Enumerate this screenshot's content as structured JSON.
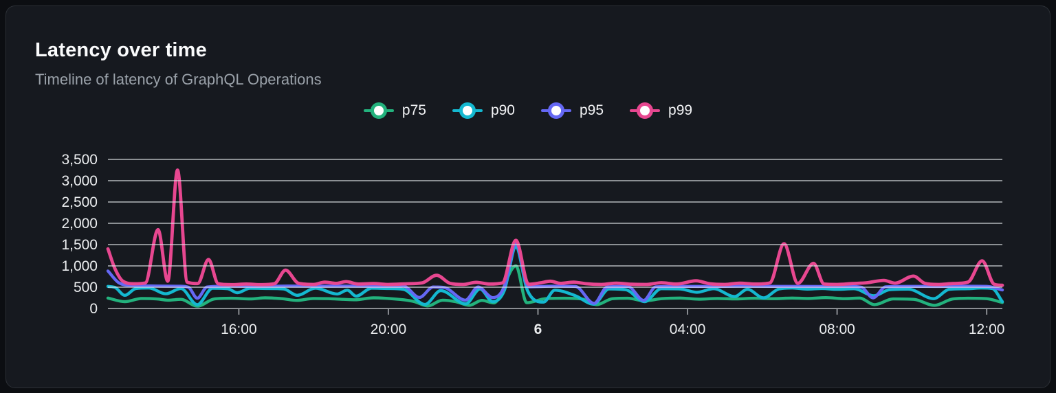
{
  "chart_data": {
    "type": "line",
    "title": "Latency over time",
    "subtitle": "Timeline of latency of GraphQL Operations",
    "legend_position": "top",
    "grid": "horizontal-gridlines-over-series",
    "x_unit": "hours from chart start (~12:30)",
    "xlim": [
      0,
      23.92
    ],
    "ylim": [
      0,
      3500
    ],
    "x_ticks": [
      {
        "t": 3.5,
        "label": "16:00",
        "bold": false
      },
      {
        "t": 7.5,
        "label": "20:00",
        "bold": false
      },
      {
        "t": 11.5,
        "label": "6",
        "bold": true
      },
      {
        "t": 15.5,
        "label": "04:00",
        "bold": false
      },
      {
        "t": 19.5,
        "label": "08:00",
        "bold": false
      },
      {
        "t": 23.5,
        "label": "12:00",
        "bold": false
      }
    ],
    "y_ticks": [
      {
        "value": 0,
        "label": "0"
      },
      {
        "value": 500,
        "label": "500"
      },
      {
        "value": 1000,
        "label": "1,000"
      },
      {
        "value": 1500,
        "label": "1,500"
      },
      {
        "value": 2000,
        "label": "2,000"
      },
      {
        "value": 2500,
        "label": "2,500"
      },
      {
        "value": 3000,
        "label": "3,000"
      },
      {
        "value": 3500,
        "label": "3,500"
      }
    ],
    "series": [
      {
        "name": "p75",
        "color": "#23b27d",
        "width": 4.4,
        "points": [
          [
            0,
            245
          ],
          [
            0.45,
            160
          ],
          [
            0.9,
            235
          ],
          [
            1.3,
            225
          ],
          [
            1.6,
            195
          ],
          [
            1.95,
            215
          ],
          [
            2.39,
            55
          ],
          [
            2.85,
            225
          ],
          [
            3.3,
            240
          ],
          [
            3.8,
            225
          ],
          [
            4.2,
            250
          ],
          [
            4.65,
            230
          ],
          [
            5.05,
            190
          ],
          [
            5.5,
            235
          ],
          [
            5.9,
            230
          ],
          [
            6.3,
            215
          ],
          [
            6.6,
            205
          ],
          [
            7.1,
            250
          ],
          [
            7.5,
            235
          ],
          [
            7.9,
            205
          ],
          [
            8.2,
            160
          ],
          [
            8.55,
            60
          ],
          [
            8.95,
            195
          ],
          [
            9.3,
            160
          ],
          [
            9.66,
            75
          ],
          [
            10.0,
            190
          ],
          [
            10.32,
            130
          ],
          [
            10.91,
            1000
          ],
          [
            11.2,
            135
          ],
          [
            11.7,
            230
          ],
          [
            12.2,
            240
          ],
          [
            12.7,
            220
          ],
          [
            13.06,
            90
          ],
          [
            13.5,
            230
          ],
          [
            13.9,
            240
          ],
          [
            14.35,
            180
          ],
          [
            14.8,
            230
          ],
          [
            15.3,
            245
          ],
          [
            15.8,
            220
          ],
          [
            16.3,
            235
          ],
          [
            16.8,
            225
          ],
          [
            17.3,
            240
          ],
          [
            17.8,
            230
          ],
          [
            18.3,
            245
          ],
          [
            18.7,
            235
          ],
          [
            19.2,
            255
          ],
          [
            19.7,
            230
          ],
          [
            20.1,
            245
          ],
          [
            20.5,
            90
          ],
          [
            21.0,
            225
          ],
          [
            21.55,
            215
          ],
          [
            22.1,
            75
          ],
          [
            22.6,
            225
          ],
          [
            23.0,
            240
          ],
          [
            23.5,
            230
          ],
          [
            23.92,
            140
          ]
        ]
      },
      {
        "name": "p90",
        "color": "#14b8d0",
        "width": 4.4,
        "points": [
          [
            0,
            520
          ],
          [
            0.2,
            490
          ],
          [
            0.45,
            310
          ],
          [
            0.75,
            470
          ],
          [
            1.1,
            480
          ],
          [
            1.55,
            345
          ],
          [
            1.95,
            470
          ],
          [
            2.39,
            90
          ],
          [
            2.8,
            475
          ],
          [
            3.2,
            465
          ],
          [
            3.46,
            370
          ],
          [
            3.8,
            475
          ],
          [
            4.3,
            470
          ],
          [
            4.7,
            460
          ],
          [
            5.06,
            310
          ],
          [
            5.55,
            478
          ],
          [
            6.13,
            340
          ],
          [
            6.4,
            430
          ],
          [
            6.64,
            290
          ],
          [
            7.05,
            478
          ],
          [
            7.5,
            470
          ],
          [
            7.9,
            450
          ],
          [
            8.48,
            95
          ],
          [
            8.9,
            420
          ],
          [
            9.57,
            110
          ],
          [
            9.95,
            460
          ],
          [
            10.29,
            160
          ],
          [
            10.6,
            420
          ],
          [
            10.91,
            1445
          ],
          [
            11.22,
            420
          ],
          [
            11.65,
            150
          ],
          [
            11.95,
            430
          ],
          [
            12.5,
            300
          ],
          [
            12.99,
            100
          ],
          [
            13.4,
            460
          ],
          [
            13.85,
            440
          ],
          [
            14.35,
            160
          ],
          [
            14.8,
            465
          ],
          [
            15.3,
            460
          ],
          [
            15.75,
            380
          ],
          [
            16.2,
            465
          ],
          [
            16.76,
            280
          ],
          [
            17.1,
            450
          ],
          [
            17.53,
            250
          ],
          [
            17.95,
            460
          ],
          [
            18.3,
            480
          ],
          [
            18.7,
            455
          ],
          [
            19.1,
            470
          ],
          [
            19.5,
            450
          ],
          [
            19.95,
            465
          ],
          [
            20.48,
            300
          ],
          [
            20.9,
            440
          ],
          [
            21.4,
            455
          ],
          [
            22.08,
            230
          ],
          [
            22.5,
            450
          ],
          [
            23.0,
            465
          ],
          [
            23.35,
            480
          ],
          [
            23.65,
            470
          ],
          [
            23.92,
            160
          ]
        ]
      },
      {
        "name": "p95",
        "color": "#6568f4",
        "width": 4.4,
        "points": [
          [
            0,
            880
          ],
          [
            0.3,
            600
          ],
          [
            0.7,
            535
          ],
          [
            1.3,
            528
          ],
          [
            1.9,
            522
          ],
          [
            2.15,
            500
          ],
          [
            2.39,
            240
          ],
          [
            2.65,
            505
          ],
          [
            3.2,
            525
          ],
          [
            4.0,
            520
          ],
          [
            4.8,
            528
          ],
          [
            5.6,
            522
          ],
          [
            6.4,
            526
          ],
          [
            7.2,
            520
          ],
          [
            7.9,
            525
          ],
          [
            8.33,
            260
          ],
          [
            8.7,
            505
          ],
          [
            9.0,
            490
          ],
          [
            9.56,
            195
          ],
          [
            9.9,
            505
          ],
          [
            10.29,
            255
          ],
          [
            10.6,
            510
          ],
          [
            10.91,
            1520
          ],
          [
            11.25,
            510
          ],
          [
            11.9,
            522
          ],
          [
            12.5,
            518
          ],
          [
            13.0,
            120
          ],
          [
            13.35,
            505
          ],
          [
            13.9,
            520
          ],
          [
            14.33,
            190
          ],
          [
            14.65,
            510
          ],
          [
            15.3,
            520
          ],
          [
            16.1,
            518
          ],
          [
            16.9,
            522
          ],
          [
            17.7,
            520
          ],
          [
            18.4,
            520
          ],
          [
            19.1,
            518
          ],
          [
            19.8,
            520
          ],
          [
            20.15,
            500
          ],
          [
            20.46,
            250
          ],
          [
            20.8,
            510
          ],
          [
            21.4,
            520
          ],
          [
            22.2,
            518
          ],
          [
            22.9,
            522
          ],
          [
            23.5,
            520
          ],
          [
            23.92,
            435
          ]
        ]
      },
      {
        "name": "p99",
        "color": "#e74790",
        "width": 4.8,
        "points": [
          [
            0,
            1400
          ],
          [
            0.18,
            950
          ],
          [
            0.4,
            640
          ],
          [
            0.7,
            580
          ],
          [
            1.0,
            600
          ],
          [
            1.34,
            1850
          ],
          [
            1.6,
            640
          ],
          [
            1.86,
            3250
          ],
          [
            2.12,
            620
          ],
          [
            2.4,
            585
          ],
          [
            2.69,
            1150
          ],
          [
            2.95,
            580
          ],
          [
            3.3,
            560
          ],
          [
            3.7,
            575
          ],
          [
            4.1,
            560
          ],
          [
            4.45,
            580
          ],
          [
            4.75,
            900
          ],
          [
            5.1,
            590
          ],
          [
            5.5,
            565
          ],
          [
            5.8,
            620
          ],
          [
            6.1,
            590
          ],
          [
            6.37,
            630
          ],
          [
            6.7,
            575
          ],
          [
            7.1,
            585
          ],
          [
            7.5,
            565
          ],
          [
            8.0,
            580
          ],
          [
            8.4,
            600
          ],
          [
            8.79,
            780
          ],
          [
            9.15,
            590
          ],
          [
            9.5,
            565
          ],
          [
            9.85,
            615
          ],
          [
            10.2,
            575
          ],
          [
            10.55,
            600
          ],
          [
            10.91,
            1600
          ],
          [
            11.25,
            570
          ],
          [
            11.55,
            600
          ],
          [
            11.83,
            640
          ],
          [
            12.1,
            590
          ],
          [
            12.45,
            620
          ],
          [
            12.8,
            580
          ],
          [
            13.2,
            565
          ],
          [
            13.6,
            595
          ],
          [
            14.0,
            570
          ],
          [
            14.4,
            565
          ],
          [
            14.8,
            605
          ],
          [
            15.2,
            575
          ],
          [
            15.73,
            650
          ],
          [
            16.1,
            580
          ],
          [
            16.5,
            565
          ],
          [
            16.9,
            595
          ],
          [
            17.3,
            575
          ],
          [
            17.7,
            600
          ],
          [
            18.08,
            1520
          ],
          [
            18.45,
            590
          ],
          [
            18.87,
            1060
          ],
          [
            19.15,
            575
          ],
          [
            19.5,
            565
          ],
          [
            19.9,
            585
          ],
          [
            20.3,
            605
          ],
          [
            20.75,
            660
          ],
          [
            21.05,
            595
          ],
          [
            21.54,
            760
          ],
          [
            21.85,
            590
          ],
          [
            22.2,
            565
          ],
          [
            22.6,
            585
          ],
          [
            23.0,
            620
          ],
          [
            23.38,
            1120
          ],
          [
            23.7,
            570
          ],
          [
            23.92,
            545
          ]
        ]
      }
    ],
    "colors": {
      "page_background": "#0c0e12",
      "card_background": "#16191f",
      "card_border": "#2c3036",
      "gridline": "#e2e4e8",
      "axis_line": "#8b8e93",
      "tick_label": "#eceef0",
      "title_text": "#fafbfc",
      "subtitle_text": "#9aa1a9",
      "legend_text": "#f3f4f6"
    }
  }
}
